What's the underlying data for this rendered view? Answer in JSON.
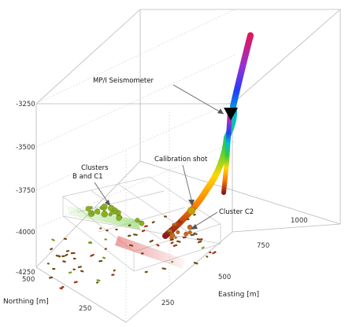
{
  "chart_data": {
    "type": "scatter",
    "projection": "3d",
    "z_ticks": [
      "-3250",
      "-3500",
      "-3750",
      "-4000",
      "-4250"
    ],
    "northing_ticks": [
      "500",
      "250"
    ],
    "easting_ticks": [
      "250",
      "500",
      "750",
      "1000"
    ],
    "northing_label": "Northing [m]",
    "easting_label": "Easting [m]",
    "annotations": [
      "MP/I Seismometer",
      "Clusters\nB and C1",
      "Calibration shot",
      "Cluster C2"
    ],
    "colors": {
      "trajectory_gradient": [
        "#8b1a1a",
        "#ff8c00",
        "#ffd700",
        "#2ecc40",
        "#00bcd4",
        "#1e3fff",
        "#9b2fd0",
        "#e0185a"
      ],
      "events_cluster_b_c1": "#8ab020",
      "events_lower_cloud": "#6b4a10",
      "calibration_shot": "#c9a000",
      "seismometer_marker": "#000000"
    }
  }
}
